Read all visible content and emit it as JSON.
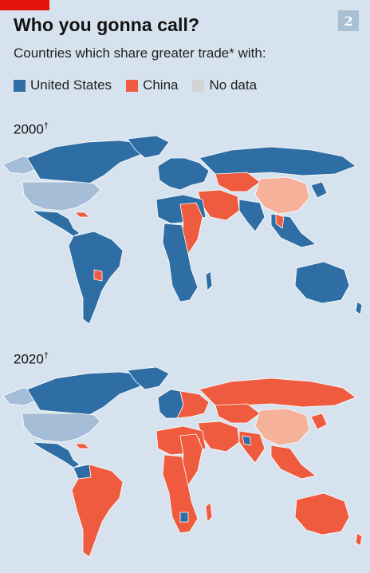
{
  "header": {
    "title": "Who you gonna call?",
    "subtitle": "Countries which share greater trade* with:",
    "badge": "2"
  },
  "legend": [
    {
      "label": "United States",
      "color": "#2f6ea5"
    },
    {
      "label": "China",
      "color": "#ef5b3e"
    },
    {
      "label": "No data",
      "color": "#d4d4d4"
    }
  ],
  "maps": [
    {
      "year": "2000",
      "mark": "†"
    },
    {
      "year": "2020",
      "mark": "†"
    }
  ],
  "colors": {
    "us": "#2f6ea5",
    "china": "#ef5b3e",
    "us_self": "#a5bdd6",
    "china_self": "#f5b19a",
    "no_data": "#d4d4d4",
    "ocean": "#d6e3ee",
    "border": "#ffffff"
  }
}
